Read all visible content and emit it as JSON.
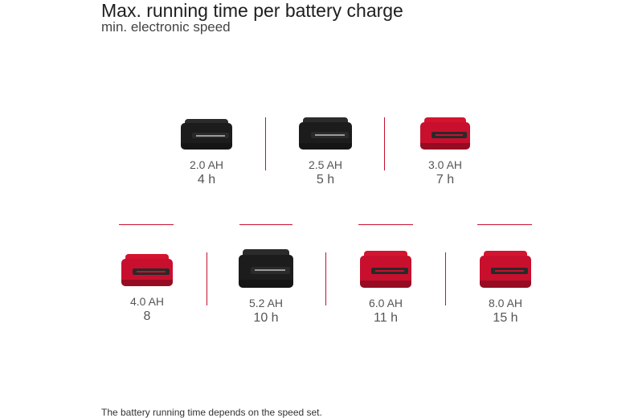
{
  "title": "Max. running time per battery charge",
  "subtitle": "min. electronic speed",
  "footnote": "The battery running time depends on the speed set.",
  "colors": {
    "accent": "#c8102e",
    "dark": "#1c1c1c"
  },
  "batteries": [
    {
      "capacity": "2.0 AH",
      "time": "4 h",
      "casing": "black"
    },
    {
      "capacity": "2.5 AH",
      "time": "5 h",
      "casing": "black"
    },
    {
      "capacity": "3.0 AH",
      "time": "7 h",
      "casing": "red"
    },
    {
      "capacity": "4.0 AH",
      "time": "8",
      "casing": "red"
    },
    {
      "capacity": "5.2 AH",
      "time": "10 h",
      "casing": "black"
    },
    {
      "capacity": "6.0 AH",
      "time": "11 h",
      "casing": "red"
    },
    {
      "capacity": "8.0 AH",
      "time": "15 h",
      "casing": "red"
    }
  ]
}
